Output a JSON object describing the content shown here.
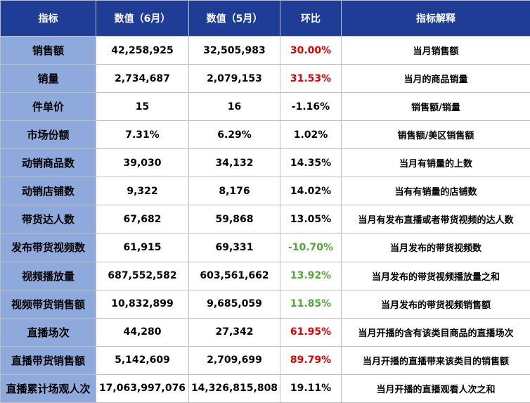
{
  "header": {
    "metric": "指标",
    "june": "数值（6月）",
    "may": "数值（5月）",
    "mom": "环比",
    "explain": "指标解释"
  },
  "colors": {
    "header_bg": "#1f3c96",
    "name_bg": "#8ea9db",
    "red": "#e00000",
    "green": "#53a537",
    "black": "#000000"
  },
  "rows": [
    {
      "name": "销售额",
      "june": "42,258,925",
      "may": "32,505,983",
      "mom": "30.00%",
      "mom_color": "red",
      "desc": "当月销售额"
    },
    {
      "name": "销量",
      "june": "2,734,687",
      "may": "2,079,153",
      "mom": "31.53%",
      "mom_color": "red",
      "desc": "当月的商品销量"
    },
    {
      "name": "件单价",
      "june": "15",
      "may": "16",
      "mom": "-1.16%",
      "mom_color": "black",
      "desc": "销售额/销量"
    },
    {
      "name": "市场份额",
      "june": "7.31%",
      "may": "6.29%",
      "mom": "1.02%",
      "mom_color": "black",
      "desc": "销售额/美区销售额"
    },
    {
      "name": "动销商品数",
      "june": "39,030",
      "may": "34,132",
      "mom": "14.35%",
      "mom_color": "black",
      "desc": "当月有销量的上数"
    },
    {
      "name": "动销店铺数",
      "june": "9,322",
      "may": "8,176",
      "mom": "14.02%",
      "mom_color": "black",
      "desc": "当有有销量的店铺数"
    },
    {
      "name": "带货达人数",
      "june": "67,682",
      "may": "59,868",
      "mom": "13.05%",
      "mom_color": "black",
      "desc": "当月有发布直播或者带货视频的达人数"
    },
    {
      "name": "发布带货视频数",
      "june": "61,915",
      "may": "69,331",
      "mom": "-10.70%",
      "mom_color": "green",
      "desc": "当月发布的带货视频数"
    },
    {
      "name": "视频播放量",
      "june": "687,552,582",
      "may": "603,561,662",
      "mom": "13.92%",
      "mom_color": "green",
      "desc": "当月发布的带货视频播放量之和"
    },
    {
      "name": "视频带货销售额",
      "june": "10,832,899",
      "may": "9,685,059",
      "mom": "11.85%",
      "mom_color": "green",
      "desc": "当月发布的带货视频销售额"
    },
    {
      "name": "直播场次",
      "june": "44,280",
      "may": "27,342",
      "mom": "61.95%",
      "mom_color": "red",
      "desc": "当月开播的含有该类目商品的直播场次"
    },
    {
      "name": "直播带货销售额",
      "june": "5,142,609",
      "may": "2,709,699",
      "mom": "89.79%",
      "mom_color": "red",
      "desc": "当月开播的直播带来该类目的销售额"
    },
    {
      "name": "直播累计场观人次",
      "june": "17,063,997,076",
      "may": "14,326,815,808",
      "mom": "19.11%",
      "mom_color": "black",
      "desc": "当月开播的直播观看人次之和"
    }
  ]
}
